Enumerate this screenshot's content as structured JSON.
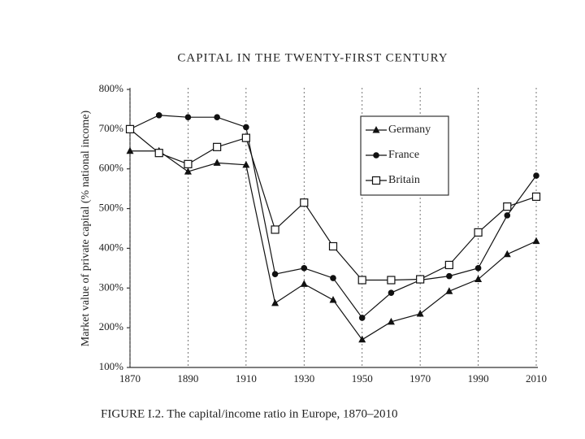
{
  "chart_data": {
    "type": "line",
    "header": "CAPITAL IN THE TWENTY-FIRST CENTURY",
    "caption": "FIGURE I.2. The capital/income ratio in Europe, 1870–2010",
    "y_label": "Market value of private capital (% national income)",
    "x": [
      1870,
      1880,
      1890,
      1900,
      1910,
      1920,
      1930,
      1940,
      1950,
      1960,
      1970,
      1980,
      1990,
      2000,
      2010
    ],
    "series": [
      {
        "name": "Germany",
        "color": "#111111",
        "marker": "triangle",
        "values": [
          645,
          645,
          593,
          615,
          610,
          262,
          310,
          270,
          170,
          215,
          235,
          292,
          322,
          385,
          418
        ]
      },
      {
        "name": "France",
        "color": "#111111",
        "marker": "circle",
        "values": [
          700,
          735,
          730,
          730,
          705,
          335,
          350,
          325,
          225,
          288,
          320,
          330,
          350,
          483,
          583
        ]
      },
      {
        "name": "Britain",
        "color": "#111111",
        "marker": "open-square",
        "values": [
          700,
          640,
          612,
          655,
          678,
          447,
          515,
          405,
          320,
          320,
          322,
          358,
          440,
          505,
          530
        ]
      }
    ],
    "xlim": [
      1870,
      2010
    ],
    "xticks": [
      1870,
      1890,
      1910,
      1930,
      1950,
      1970,
      1990,
      2010
    ],
    "ylim": [
      100,
      800
    ],
    "yticks": [
      {
        "value": 100,
        "label": "100%"
      },
      {
        "value": 200,
        "label": "200%"
      },
      {
        "value": 300,
        "label": "300%"
      },
      {
        "value": 400,
        "label": "400%"
      },
      {
        "value": 500,
        "label": "500%"
      },
      {
        "value": 600,
        "label": "600%"
      },
      {
        "value": 700,
        "label": "700%"
      },
      {
        "value": 800,
        "label": "800%"
      }
    ],
    "grid": "x",
    "legend": "top-right"
  }
}
